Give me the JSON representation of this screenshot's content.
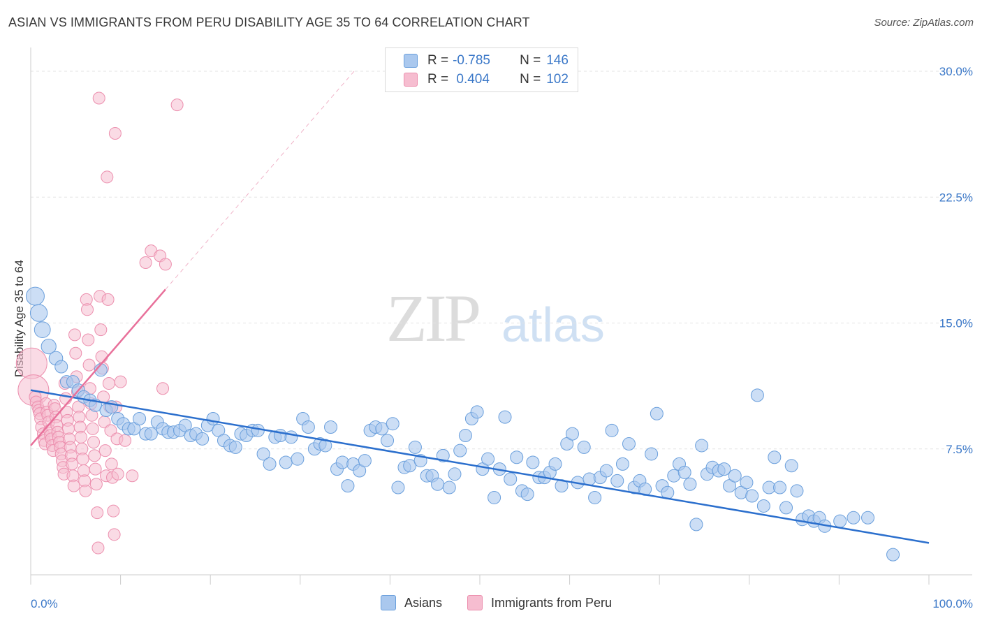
{
  "title": "ASIAN VS IMMIGRANTS FROM PERU DISABILITY AGE 35 TO 64 CORRELATION CHART",
  "source": "Source: ZipAtlas.com",
  "watermark": {
    "zip": "ZIP",
    "atlas": "atlas"
  },
  "legend": {
    "rows": [
      {
        "r_label": "R =",
        "r_value": "-0.785",
        "n_label": "N =",
        "n_value": "146"
      },
      {
        "r_label": "R =",
        "r_value": " 0.404",
        "n_label": "N =",
        "n_value": "102"
      }
    ]
  },
  "colors": {
    "asians_fill": "#aac8ee",
    "asians_stroke": "#6a9fdc",
    "asians_line": "#2b6fcd",
    "peru_fill": "#f6bdd0",
    "peru_stroke": "#ec8fae",
    "peru_line": "#e8709a",
    "grid": "#e3e3e3",
    "axis_text": "#3b78c8"
  },
  "chart_data": {
    "type": "scatter",
    "title": "ASIAN VS IMMIGRANTS FROM PERU DISABILITY AGE 35 TO 64 CORRELATION CHART",
    "xlabel": "",
    "ylabel": "Disability Age 35 to 64",
    "xlim": [
      0,
      100
    ],
    "ylim": [
      0,
      31
    ],
    "x_tick_labels": [
      "0.0%",
      "100.0%"
    ],
    "y_ticks": [
      7.5,
      15.0,
      22.5,
      30.0
    ],
    "y_tick_labels": [
      "7.5%",
      "15.0%",
      "22.5%",
      "30.0%"
    ],
    "grid": true,
    "legend_position": "top-center",
    "series": [
      {
        "name": "Asians",
        "r": -0.785,
        "n": 146,
        "trend": {
          "x": [
            0,
            100
          ],
          "y": [
            11.0,
            1.9
          ]
        },
        "points": [
          [
            0.5,
            16.6
          ],
          [
            0.9,
            15.6
          ],
          [
            1.3,
            14.6
          ],
          [
            2.0,
            13.6
          ],
          [
            2.8,
            12.9
          ],
          [
            3.4,
            12.4
          ],
          [
            4.0,
            11.5
          ],
          [
            4.7,
            11.5
          ],
          [
            5.3,
            11.0
          ],
          [
            5.9,
            10.6
          ],
          [
            6.6,
            10.4
          ],
          [
            7.2,
            10.1
          ],
          [
            7.8,
            12.2
          ],
          [
            8.4,
            9.8
          ],
          [
            9.0,
            10.0
          ],
          [
            9.7,
            9.3
          ],
          [
            10.3,
            9.0
          ],
          [
            10.9,
            8.7
          ],
          [
            11.5,
            8.7
          ],
          [
            12.1,
            9.3
          ],
          [
            12.8,
            8.4
          ],
          [
            13.4,
            8.4
          ],
          [
            14.1,
            9.1
          ],
          [
            14.7,
            8.7
          ],
          [
            15.3,
            8.5
          ],
          [
            15.9,
            8.5
          ],
          [
            16.6,
            8.6
          ],
          [
            17.2,
            8.9
          ],
          [
            17.8,
            8.3
          ],
          [
            18.4,
            8.4
          ],
          [
            19.1,
            8.1
          ],
          [
            19.7,
            8.9
          ],
          [
            20.3,
            9.3
          ],
          [
            20.9,
            8.6
          ],
          [
            21.5,
            8.0
          ],
          [
            22.2,
            7.7
          ],
          [
            22.8,
            7.6
          ],
          [
            23.4,
            8.4
          ],
          [
            24.0,
            8.3
          ],
          [
            24.7,
            8.6
          ],
          [
            25.3,
            8.6
          ],
          [
            25.9,
            7.2
          ],
          [
            26.6,
            6.6
          ],
          [
            27.2,
            8.2
          ],
          [
            27.8,
            8.3
          ],
          [
            28.4,
            6.7
          ],
          [
            29.0,
            8.2
          ],
          [
            29.7,
            6.9
          ],
          [
            30.3,
            9.3
          ],
          [
            30.9,
            8.8
          ],
          [
            31.6,
            7.5
          ],
          [
            32.2,
            7.8
          ],
          [
            32.8,
            7.7
          ],
          [
            33.4,
            8.8
          ],
          [
            34.1,
            6.3
          ],
          [
            34.7,
            6.7
          ],
          [
            35.3,
            5.3
          ],
          [
            35.9,
            6.6
          ],
          [
            36.6,
            6.2
          ],
          [
            37.2,
            6.8
          ],
          [
            37.8,
            8.6
          ],
          [
            38.4,
            8.8
          ],
          [
            39.1,
            8.7
          ],
          [
            39.7,
            8.0
          ],
          [
            40.3,
            9.0
          ],
          [
            40.9,
            5.2
          ],
          [
            41.6,
            6.4
          ],
          [
            42.2,
            6.5
          ],
          [
            42.8,
            7.6
          ],
          [
            43.4,
            6.8
          ],
          [
            44.1,
            5.9
          ],
          [
            44.7,
            5.9
          ],
          [
            45.3,
            5.4
          ],
          [
            45.9,
            7.1
          ],
          [
            46.6,
            5.2
          ],
          [
            47.2,
            6.0
          ],
          [
            47.8,
            7.4
          ],
          [
            48.4,
            8.3
          ],
          [
            49.1,
            9.3
          ],
          [
            49.7,
            9.7
          ],
          [
            50.3,
            6.3
          ],
          [
            50.9,
            6.9
          ],
          [
            51.6,
            4.6
          ],
          [
            52.2,
            6.3
          ],
          [
            52.8,
            9.4
          ],
          [
            53.4,
            5.7
          ],
          [
            54.1,
            7.0
          ],
          [
            54.7,
            5.0
          ],
          [
            55.3,
            4.8
          ],
          [
            55.9,
            6.7
          ],
          [
            56.6,
            5.8
          ],
          [
            57.2,
            5.8
          ],
          [
            57.8,
            6.1
          ],
          [
            58.4,
            6.6
          ],
          [
            59.1,
            5.3
          ],
          [
            59.7,
            7.8
          ],
          [
            60.3,
            8.4
          ],
          [
            60.9,
            5.5
          ],
          [
            61.6,
            7.6
          ],
          [
            62.2,
            5.7
          ],
          [
            62.8,
            4.6
          ],
          [
            63.4,
            5.8
          ],
          [
            64.1,
            6.2
          ],
          [
            64.7,
            8.6
          ],
          [
            65.3,
            5.6
          ],
          [
            65.9,
            6.6
          ],
          [
            66.6,
            7.8
          ],
          [
            67.2,
            5.2
          ],
          [
            67.8,
            5.6
          ],
          [
            68.4,
            5.1
          ],
          [
            69.1,
            7.2
          ],
          [
            69.7,
            9.6
          ],
          [
            70.3,
            5.3
          ],
          [
            70.9,
            4.9
          ],
          [
            71.6,
            5.9
          ],
          [
            72.2,
            6.6
          ],
          [
            72.8,
            6.1
          ],
          [
            73.4,
            5.4
          ],
          [
            74.1,
            3.0
          ],
          [
            74.7,
            7.7
          ],
          [
            75.3,
            6.0
          ],
          [
            75.9,
            6.4
          ],
          [
            76.6,
            6.2
          ],
          [
            77.2,
            6.3
          ],
          [
            77.8,
            5.3
          ],
          [
            78.4,
            5.9
          ],
          [
            79.1,
            4.9
          ],
          [
            79.7,
            5.5
          ],
          [
            80.3,
            4.7
          ],
          [
            80.9,
            10.7
          ],
          [
            81.6,
            4.1
          ],
          [
            82.2,
            5.2
          ],
          [
            82.8,
            7.0
          ],
          [
            83.4,
            5.2
          ],
          [
            84.1,
            4.0
          ],
          [
            84.7,
            6.5
          ],
          [
            85.3,
            5.0
          ],
          [
            85.9,
            3.3
          ],
          [
            86.6,
            3.5
          ],
          [
            87.2,
            3.2
          ],
          [
            87.8,
            3.4
          ],
          [
            88.4,
            2.9
          ],
          [
            90.1,
            3.2
          ],
          [
            91.6,
            3.4
          ],
          [
            93.2,
            3.4
          ],
          [
            96.0,
            1.2
          ]
        ]
      },
      {
        "name": "Immigrants from Peru",
        "r": 0.404,
        "n": 102,
        "trend": {
          "x": [
            0,
            15
          ],
          "y": [
            7.7,
            17.0
          ]
        },
        "trend_dashed": {
          "x": [
            15,
            36
          ],
          "y": [
            17.0,
            30.0
          ]
        },
        "points": [
          [
            0.1,
            12.6
          ],
          [
            0.3,
            11.0
          ],
          [
            0.5,
            10.6
          ],
          [
            0.6,
            10.3
          ],
          [
            0.8,
            10.0
          ],
          [
            0.9,
            9.8
          ],
          [
            1.0,
            9.6
          ],
          [
            1.1,
            9.3
          ],
          [
            1.2,
            8.8
          ],
          [
            1.4,
            8.4
          ],
          [
            1.5,
            8.0
          ],
          [
            1.6,
            7.8
          ],
          [
            1.7,
            10.2
          ],
          [
            1.8,
            9.7
          ],
          [
            1.9,
            9.5
          ],
          [
            2.0,
            9.1
          ],
          [
            2.1,
            8.6
          ],
          [
            2.2,
            8.3
          ],
          [
            2.3,
            8.1
          ],
          [
            2.4,
            7.7
          ],
          [
            2.5,
            7.4
          ],
          [
            2.6,
            10.1
          ],
          [
            2.7,
            9.9
          ],
          [
            2.8,
            9.4
          ],
          [
            2.9,
            8.9
          ],
          [
            3.0,
            8.5
          ],
          [
            3.1,
            8.2
          ],
          [
            3.2,
            7.9
          ],
          [
            3.3,
            7.6
          ],
          [
            3.4,
            7.2
          ],
          [
            3.5,
            6.8
          ],
          [
            3.6,
            6.4
          ],
          [
            3.7,
            6.0
          ],
          [
            3.8,
            11.4
          ],
          [
            3.9,
            10.5
          ],
          [
            4.0,
            9.7
          ],
          [
            4.1,
            9.2
          ],
          [
            4.2,
            8.7
          ],
          [
            4.3,
            8.1
          ],
          [
            4.4,
            7.6
          ],
          [
            4.5,
            7.1
          ],
          [
            4.6,
            6.6
          ],
          [
            4.7,
            5.9
          ],
          [
            4.8,
            5.3
          ],
          [
            4.9,
            14.3
          ],
          [
            5.0,
            13.2
          ],
          [
            5.1,
            11.8
          ],
          [
            5.2,
            10.9
          ],
          [
            5.3,
            10.0
          ],
          [
            5.4,
            9.4
          ],
          [
            5.5,
            8.8
          ],
          [
            5.6,
            8.2
          ],
          [
            5.7,
            7.5
          ],
          [
            5.8,
            6.9
          ],
          [
            5.9,
            6.2
          ],
          [
            6.0,
            5.6
          ],
          [
            6.1,
            5.0
          ],
          [
            6.2,
            16.4
          ],
          [
            6.3,
            15.8
          ],
          [
            6.4,
            14.0
          ],
          [
            6.5,
            12.5
          ],
          [
            6.6,
            11.1
          ],
          [
            6.7,
            10.2
          ],
          [
            6.8,
            9.5
          ],
          [
            6.9,
            8.7
          ],
          [
            7.0,
            7.9
          ],
          [
            7.1,
            7.1
          ],
          [
            7.2,
            6.3
          ],
          [
            7.3,
            5.4
          ],
          [
            7.4,
            3.7
          ],
          [
            7.5,
            1.6
          ],
          [
            7.6,
            28.4
          ],
          [
            7.7,
            16.6
          ],
          [
            7.8,
            14.6
          ],
          [
            7.9,
            13.0
          ],
          [
            8.0,
            12.3
          ],
          [
            8.1,
            10.6
          ],
          [
            8.2,
            9.1
          ],
          [
            8.3,
            7.4
          ],
          [
            8.4,
            5.9
          ],
          [
            8.5,
            23.7
          ],
          [
            8.6,
            16.4
          ],
          [
            8.7,
            11.4
          ],
          [
            8.8,
            10.0
          ],
          [
            8.9,
            8.6
          ],
          [
            9.0,
            6.6
          ],
          [
            9.1,
            5.8
          ],
          [
            9.2,
            3.8
          ],
          [
            9.3,
            2.4
          ],
          [
            9.4,
            26.3
          ],
          [
            9.5,
            10.0
          ],
          [
            9.6,
            8.1
          ],
          [
            9.7,
            6.0
          ],
          [
            10.0,
            11.5
          ],
          [
            10.5,
            8.0
          ],
          [
            11.3,
            5.9
          ],
          [
            12.8,
            18.6
          ],
          [
            13.4,
            19.3
          ],
          [
            14.4,
            19.0
          ],
          [
            16.3,
            28.0
          ],
          [
            14.7,
            11.1
          ],
          [
            15.0,
            18.5
          ]
        ]
      }
    ]
  },
  "bottom_legend": [
    {
      "label": "Asians"
    },
    {
      "label": "Immigrants from Peru"
    }
  ]
}
